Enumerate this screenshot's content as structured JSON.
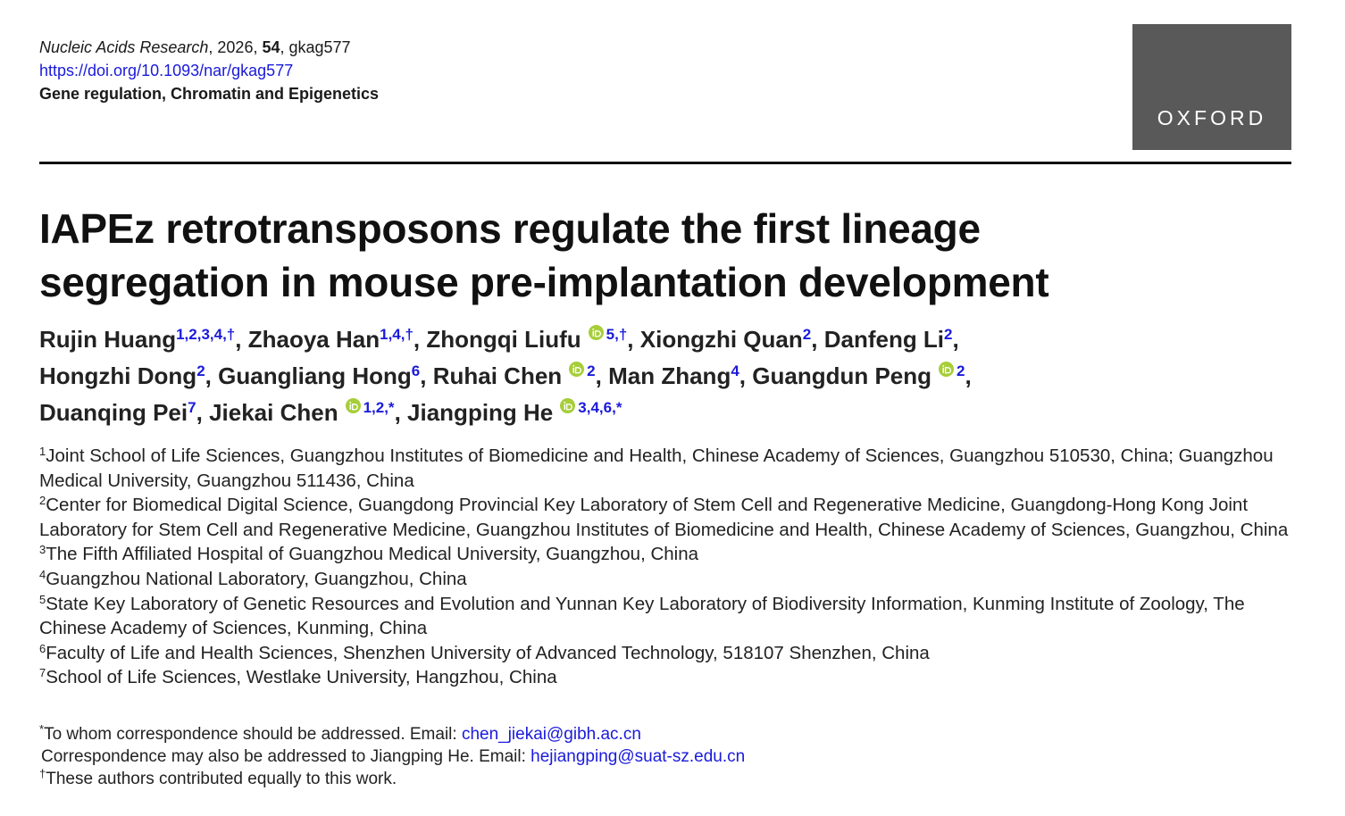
{
  "header": {
    "journal": "Nucleic Acids Research",
    "year_part": ", 2026, ",
    "volume": "54",
    "article_part": ", gkag577",
    "doi": "https://doi.org/10.1093/nar/gkag577",
    "section": "Gene regulation, Chromatin and Epigenetics",
    "logo": "OXFORD"
  },
  "title": "IAPEz retrotransposons regulate the first lineage segregation in mouse pre-implantation development",
  "authors": [
    {
      "name": "Rujin Huang",
      "sup": "1,2,3,4,†",
      "orcid": false,
      "punct": ","
    },
    {
      "name": "Zhaoya Han",
      "sup": "1,4,†",
      "orcid": false,
      "punct": ","
    },
    {
      "name": "Zhongqi Liufu",
      "sup": "5,†",
      "orcid": true,
      "punct": ","
    },
    {
      "name": "Xiongzhi Quan",
      "sup": "2",
      "orcid": false,
      "punct": ","
    },
    {
      "name": "Danfeng Li",
      "sup": "2",
      "orcid": false,
      "punct": ","
    },
    {
      "name": "Hongzhi Dong",
      "sup": "2",
      "orcid": false,
      "punct": ","
    },
    {
      "name": "Guangliang Hong",
      "sup": "6",
      "orcid": false,
      "punct": ","
    },
    {
      "name": "Ruhai Chen",
      "sup": "2",
      "orcid": true,
      "punct": ","
    },
    {
      "name": "Man Zhang",
      "sup": "4",
      "orcid": false,
      "punct": ","
    },
    {
      "name": "Guangdun Peng",
      "sup": "2",
      "orcid": true,
      "punct": ","
    },
    {
      "name": "Duanqing Pei",
      "sup": "7",
      "orcid": false,
      "punct": ","
    },
    {
      "name": "Jiekai Chen",
      "sup": "1,2,*",
      "orcid": true,
      "punct": ","
    },
    {
      "name": "Jiangping He",
      "sup": "3,4,6,*",
      "orcid": true
    }
  ],
  "affiliations": [
    {
      "num": "1",
      "text": "Joint School of Life Sciences, Guangzhou Institutes of Biomedicine and Health, Chinese Academy of Sciences, Guangzhou 510530, China; Guangzhou Medical University, Guangzhou 511436, China"
    },
    {
      "num": "2",
      "text": "Center for Biomedical Digital Science, Guangdong Provincial Key Laboratory of Stem Cell and Regenerative Medicine, Guangdong-Hong Kong Joint Laboratory for Stem Cell and Regenerative Medicine, Guangzhou Institutes of Biomedicine and Health, Chinese Academy of Sciences, Guangzhou, China"
    },
    {
      "num": "3",
      "text": "The Fifth Affiliated Hospital of Guangzhou Medical University, Guangzhou, China"
    },
    {
      "num": "4",
      "text": "Guangzhou National Laboratory, Guangzhou, China"
    },
    {
      "num": "5",
      "text": "State Key Laboratory of Genetic Resources and Evolution and Yunnan Key Laboratory of Biodiversity Information, Kunming Institute of Zoology, The Chinese Academy of Sciences, Kunming, China"
    },
    {
      "num": "6",
      "text": "Faculty of Life and Health Sciences, Shenzhen University of Advanced Technology, 518107 Shenzhen, China"
    },
    {
      "num": "7",
      "text": "School of Life Sciences, Westlake University, Hangzhou, China"
    }
  ],
  "notes": [
    {
      "mark": "*",
      "text": "To whom correspondence should be addressed. Email: ",
      "email": "chen_jiekai@gibh.ac.cn"
    },
    {
      "text": "Correspondence may also be addressed to Jiangping He. Email: ",
      "email": "hejiangping@suat-sz.edu.cn"
    },
    {
      "mark": "†",
      "text": "These authors contributed equally to this work."
    }
  ]
}
